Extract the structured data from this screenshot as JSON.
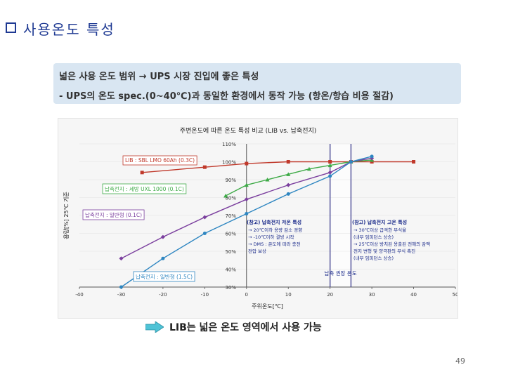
{
  "slide": {
    "title": "사용온도 특성",
    "bullet1": "넓은 사용 온도 범위 → UPS 시장 진입에 좋은 특성",
    "bullet2": "- UPS의 온도 spec.(0~40℃)과 동일한 환경에서 동작 가능 (항온/항습 비용 절감)",
    "conclusion": "LIB는 넓은 온도 영역에서 사용 가능",
    "page_number": "49"
  },
  "chart_data": {
    "type": "line",
    "title": "주변온도에 따른 온도 특성 비교 (LIB vs. 납축전지)",
    "xlabel": "주위온도[℃]",
    "ylabel": "용량[%] 25℃ 기준",
    "xlim": [
      -40,
      50
    ],
    "ylim": [
      30,
      110
    ],
    "x_ticks": [
      -40,
      -30,
      -20,
      -10,
      0,
      10,
      20,
      30,
      40,
      50
    ],
    "y_ticks": [
      30,
      40,
      50,
      60,
      70,
      80,
      90,
      100,
      110
    ],
    "y_tick_labels": [
      "30%",
      "40%",
      "50%",
      "60%",
      "70%",
      "80%",
      "90%",
      "100%",
      "110%"
    ],
    "series": [
      {
        "name": "LIB : SBL LMO 60Ah (0.3C)",
        "color": "#c0392b",
        "marker": "square",
        "x": [
          -25,
          -10,
          0,
          10,
          20,
          25,
          30,
          40
        ],
        "y": [
          94,
          97,
          99,
          100,
          100,
          100,
          100,
          100
        ]
      },
      {
        "name": "납축전지 : 세방 UXL 1000 (0.1C)",
        "color": "#3daa46",
        "marker": "triangle",
        "x": [
          -5,
          0,
          5,
          10,
          15,
          20,
          25,
          30
        ],
        "y": [
          81,
          87,
          90,
          93,
          96,
          98,
          100,
          101
        ]
      },
      {
        "name": "납축전지 : 일반형 (0.1C)",
        "color": "#7b3f9e",
        "marker": "diamond",
        "x": [
          -30,
          -20,
          -10,
          0,
          10,
          20,
          25,
          30
        ],
        "y": [
          46,
          58,
          69,
          79,
          87,
          94,
          100,
          102
        ]
      },
      {
        "name": "납축전지 : 일반형 (1.5C)",
        "color": "#2e86c1",
        "marker": "circle",
        "x": [
          -30,
          -20,
          -10,
          0,
          10,
          20,
          25,
          30
        ],
        "y": [
          30,
          46,
          60,
          71,
          82,
          92,
          100,
          103
        ]
      }
    ],
    "vlines": [
      20,
      25
    ],
    "shaded_x": [
      20,
      25
    ],
    "vline_label": "납축 권장 온도",
    "note_left": {
      "title": "(참고) 납축전지 저온 특성",
      "lines": [
        "→ 20℃이하 용량 감소 경향",
        "→ -10℃이하 결빙 시작",
        "→ DMS : 온도에 따라 충전",
        "전압 보상"
      ]
    },
    "note_right": {
      "title": "(참고) 납축전지 고온 특성",
      "lines": [
        "→ 30℃이상 급격한 부식율",
        "(내부 임피던스 상승)",
        "→ 25℃이상 방치된 용출된 전해의 감액",
        "전지 변형 및 양극판의 부식 촉진",
        "(내부 임피던스 상승)"
      ]
    }
  },
  "colors": {
    "title": "#1f3a93",
    "banner_bg": "#d9e6f2",
    "panel_bg": "#f6f6f6",
    "vline": "#3a3a8c",
    "note_text": "#1a2a8a",
    "arrow": "#4fc3d6"
  }
}
